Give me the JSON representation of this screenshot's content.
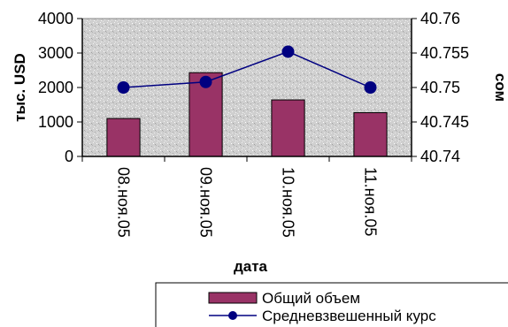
{
  "chart_data": {
    "type": "bar+line",
    "categories": [
      "08.ноя.05",
      "09.ноя.05",
      "10.ноя.05",
      "11.ноя.05"
    ],
    "xlabel": "дата",
    "ylabel_left": "тыс. USD",
    "ylabel_right": "сом",
    "ylim_left": [
      0,
      4000
    ],
    "ylim_right": [
      40.74,
      40.76
    ],
    "yticks_left": [
      "0",
      "1000",
      "2000",
      "3000",
      "4000"
    ],
    "yticks_right": [
      "40.74",
      "40.745",
      "40.75",
      "40.755",
      "40.76"
    ],
    "grid": false,
    "plot_background": "textured gray",
    "legend_position": "bottom",
    "series": [
      {
        "name": "Общий объем",
        "type": "bar",
        "axis": "left",
        "color": "#993366",
        "values": [
          1100,
          2430,
          1640,
          1270
        ]
      },
      {
        "name": "Средневзвешенный курс",
        "type": "line",
        "axis": "right",
        "color": "#000080",
        "values": [
          40.75,
          40.7508,
          40.7552,
          40.75
        ]
      }
    ]
  }
}
